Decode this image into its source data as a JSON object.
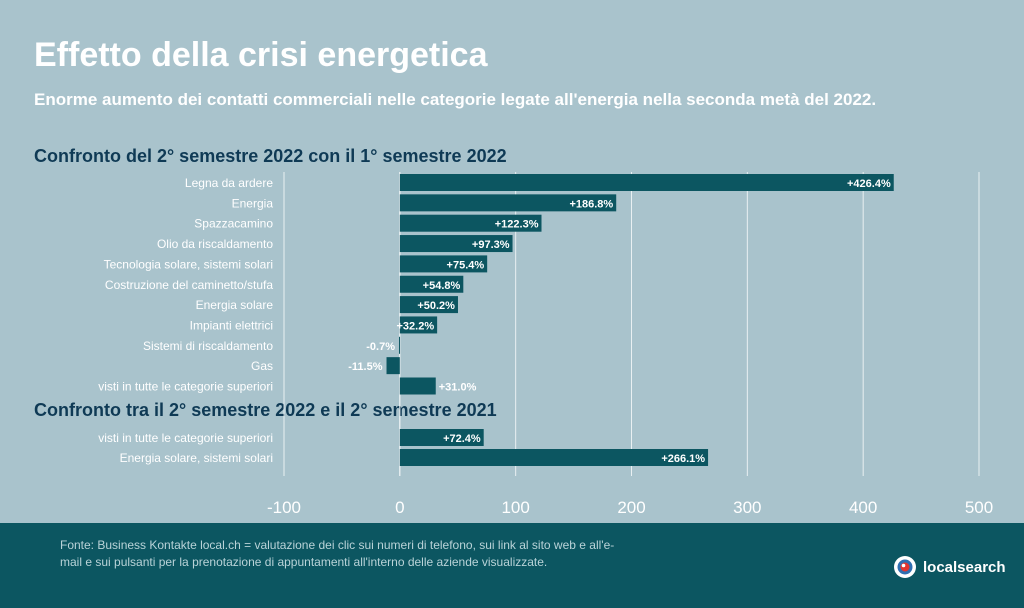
{
  "title": "Effetto della crisi energetica",
  "subtitle": "Enorme aumento dei contatti commerciali nelle categorie legate all'energia nella seconda metà del 2022.",
  "section1_title": "Confronto del 2° semestre 2022 con il 1° semestre 2022",
  "section2_title": "Confronto tra il 2° semestre 2022 e il 2° semestre 2021",
  "footer": {
    "source": "Fonte: Business Kontakte local.ch = valutazione dei clic sui numeri di telefono, sui link al sito web e all'e-mail e sui pulsanti per la prenotazione di appuntamenti all'interno delle aziende visualizzate.",
    "logo_text": "localsearch"
  },
  "colors": {
    "bar": "#0c5661",
    "background": "#a9c3cc",
    "footer": "#0c5661",
    "title": "#ffffff",
    "section_title": "#0f3a55"
  },
  "chart_data": {
    "type": "bar",
    "orientation": "horizontal",
    "xlim": [
      -100,
      500
    ],
    "xticks": [
      -100,
      0,
      100,
      200,
      300,
      400,
      500
    ],
    "grid": true,
    "groups": [
      {
        "categories": [
          "Legna da ardere",
          "Energia",
          "Spazzacamino",
          "Olio da riscaldamento",
          "Tecnologia solare, sistemi solari",
          "Costruzione del caminetto/stufa",
          "Energia solare",
          "Impianti elettrici",
          "Sistemi di riscaldamento",
          "Gas",
          "visti in tutte le categorie superiori"
        ],
        "values": [
          426.4,
          186.8,
          122.3,
          97.3,
          75.4,
          54.8,
          50.2,
          32.2,
          -0.7,
          -11.5,
          31.0
        ],
        "labels": [
          "+426.4%",
          "+186.8%",
          "+122.3%",
          "+97.3%",
          "+75.4%",
          "+54.8%",
          "+50.2%",
          "+32.2%",
          "-0.7%",
          "-11.5%",
          "+31.0%"
        ]
      },
      {
        "categories": [
          "visti in tutte le categorie superiori",
          "Energia solare, sistemi solari"
        ],
        "values": [
          72.4,
          266.1
        ],
        "labels": [
          "+72.4%",
          "+266.1%"
        ]
      }
    ]
  }
}
